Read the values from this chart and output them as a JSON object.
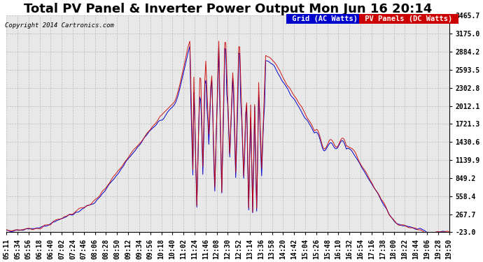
{
  "title": "Total PV Panel & Inverter Power Output Mon Jun 16 20:14",
  "copyright": "Copyright 2014 Cartronics.com",
  "legend_grid": "Grid (AC Watts)",
  "legend_pv": "PV Panels (DC Watts)",
  "legend_grid_bg": "#0000cc",
  "legend_pv_bg": "#cc0000",
  "grid_color": "#0000cc",
  "pv_color": "#cc0000",
  "background_color": "#ffffff",
  "plot_bg_color": "#e8e8e8",
  "grid_line_color": "#bbbbbb",
  "yticks": [
    -23.0,
    267.7,
    558.4,
    849.2,
    1139.9,
    1430.6,
    1721.3,
    2012.1,
    2302.8,
    2593.5,
    2884.2,
    3175.0,
    3465.7
  ],
  "ymin": -23.0,
  "ymax": 3465.7,
  "title_fontsize": 13,
  "tick_fontsize": 7,
  "xtick_labels": [
    "05:11",
    "05:34",
    "05:56",
    "06:18",
    "06:40",
    "07:02",
    "07:24",
    "07:46",
    "08:06",
    "08:28",
    "08:50",
    "09:12",
    "09:34",
    "09:56",
    "10:18",
    "10:40",
    "11:02",
    "11:24",
    "11:46",
    "12:08",
    "12:30",
    "12:52",
    "13:14",
    "13:36",
    "13:58",
    "14:20",
    "14:42",
    "15:04",
    "15:26",
    "15:48",
    "16:10",
    "16:32",
    "16:54",
    "17:16",
    "17:38",
    "18:00",
    "18:22",
    "18:44",
    "19:06",
    "19:28",
    "19:50"
  ]
}
